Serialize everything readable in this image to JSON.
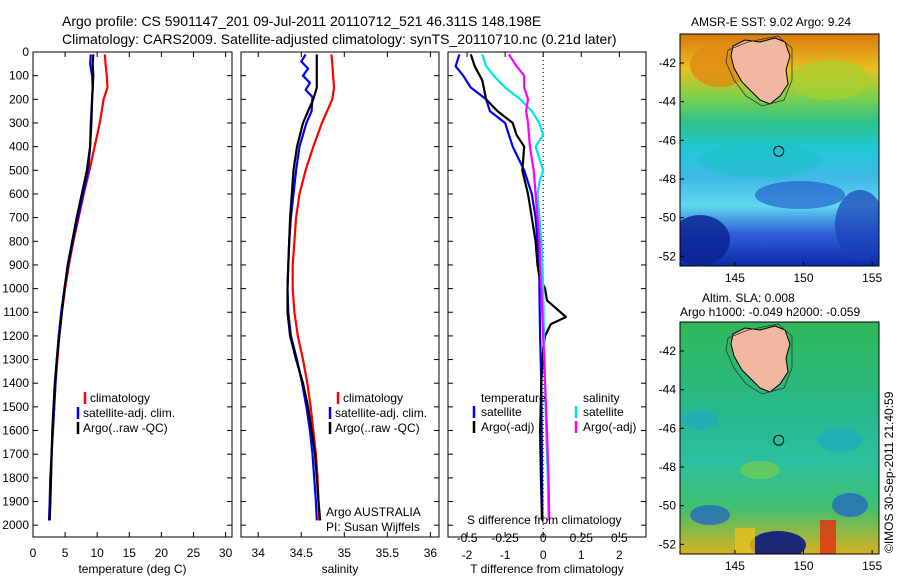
{
  "header": {
    "line1": "Argo profile: CS 5901147_201 09-Jul-2011 20110712_521 46.311S 148.198E",
    "line2": "Climatology: CARS2009. Satellite-adjusted climatology: synTS_20110710.nc (0.21d later)"
  },
  "credit": "©IMOS 30-Sep-2011 21:40:59",
  "colors": {
    "climatology": "#ff0000",
    "satellite": "#0000ff",
    "argo": "#000000",
    "sal_satellite": "#00e5e5",
    "sal_argo": "#ff00ff"
  },
  "chart_data": [
    {
      "type": "line",
      "panel": "temperature",
      "xlabel": "temperature (deg C)",
      "xlim": [
        0,
        31
      ],
      "xticks": [
        "0",
        "5",
        "10",
        "15",
        "20",
        "25",
        "30"
      ],
      "ylim": [
        0,
        2050
      ],
      "yticks": [
        "0",
        "100",
        "200",
        "300",
        "400",
        "500",
        "600",
        "700",
        "800",
        "900",
        "1000",
        "1100",
        "1200",
        "1300",
        "1400",
        "1500",
        "1600",
        "1700",
        "1800",
        "1900",
        "2000"
      ],
      "legend": [
        "climatology",
        "satellite-adj. clim.",
        "Argo(..raw -QC)"
      ],
      "series": [
        {
          "name": "climatology",
          "color": "red",
          "points": [
            [
              11.2,
              10
            ],
            [
              11.3,
              50
            ],
            [
              11.5,
              100
            ],
            [
              11.6,
              150
            ],
            [
              11.0,
              200
            ],
            [
              10.4,
              300
            ],
            [
              9.6,
              400
            ],
            [
              8.8,
              500
            ],
            [
              7.9,
              600
            ],
            [
              7.1,
              700
            ],
            [
              6.3,
              800
            ],
            [
              5.6,
              900
            ],
            [
              5.0,
              1000
            ],
            [
              4.5,
              1100
            ],
            [
              4.1,
              1200
            ],
            [
              3.8,
              1300
            ],
            [
              3.5,
              1400
            ],
            [
              3.3,
              1500
            ],
            [
              3.1,
              1600
            ],
            [
              2.9,
              1700
            ],
            [
              2.8,
              1800
            ],
            [
              2.7,
              1900
            ],
            [
              2.6,
              1980
            ]
          ]
        },
        {
          "name": "satellite-adj. clim.",
          "color": "blue",
          "points": [
            [
              9.0,
              10
            ],
            [
              8.9,
              50
            ],
            [
              9.2,
              100
            ],
            [
              9.3,
              150
            ],
            [
              9.2,
              200
            ],
            [
              9.0,
              300
            ],
            [
              8.9,
              400
            ],
            [
              8.6,
              500
            ],
            [
              7.8,
              600
            ],
            [
              7.0,
              700
            ],
            [
              6.2,
              800
            ],
            [
              5.5,
              900
            ],
            [
              4.9,
              1000
            ],
            [
              4.4,
              1100
            ],
            [
              4.0,
              1200
            ],
            [
              3.7,
              1300
            ],
            [
              3.5,
              1400
            ],
            [
              3.3,
              1500
            ],
            [
              3.1,
              1600
            ],
            [
              2.9,
              1700
            ],
            [
              2.7,
              1800
            ],
            [
              2.6,
              1900
            ],
            [
              2.5,
              1980
            ]
          ]
        },
        {
          "name": "Argo(..raw -QC)",
          "color": "black",
          "points": [
            [
              9.4,
              10
            ],
            [
              9.3,
              50
            ],
            [
              9.4,
              100
            ],
            [
              9.3,
              150
            ],
            [
              9.2,
              200
            ],
            [
              9.1,
              300
            ],
            [
              8.9,
              400
            ],
            [
              8.4,
              500
            ],
            [
              7.6,
              600
            ],
            [
              6.8,
              700
            ],
            [
              6.1,
              800
            ],
            [
              5.4,
              900
            ],
            [
              4.9,
              1000
            ],
            [
              4.5,
              1100
            ],
            [
              4.1,
              1200
            ],
            [
              3.7,
              1300
            ],
            [
              3.4,
              1400
            ],
            [
              3.2,
              1500
            ],
            [
              3.0,
              1600
            ],
            [
              2.9,
              1700
            ],
            [
              2.8,
              1800
            ],
            [
              2.7,
              1900
            ],
            [
              2.6,
              1980
            ]
          ]
        }
      ]
    },
    {
      "type": "line",
      "panel": "salinity",
      "xlabel": "salinity",
      "xlim": [
        33.8,
        36.1
      ],
      "xticks": [
        "34",
        "34.5",
        "35",
        "35.5",
        "36"
      ],
      "ylim": [
        0,
        2050
      ],
      "legend": [
        "climatology",
        "satellite-adj. clim.",
        "Argo(..raw -QC)"
      ],
      "annotation": [
        "Argo AUSTRALIA",
        "PI: Susan Wijffels"
      ],
      "series": [
        {
          "name": "climatology",
          "color": "red",
          "points": [
            [
              34.85,
              10
            ],
            [
              34.86,
              50
            ],
            [
              34.87,
              100
            ],
            [
              34.88,
              150
            ],
            [
              34.86,
              200
            ],
            [
              34.8,
              250
            ],
            [
              34.74,
              300
            ],
            [
              34.64,
              400
            ],
            [
              34.55,
              500
            ],
            [
              34.48,
              600
            ],
            [
              34.44,
              700
            ],
            [
              34.42,
              800
            ],
            [
              34.4,
              900
            ],
            [
              34.4,
              1000
            ],
            [
              34.42,
              1100
            ],
            [
              34.46,
              1200
            ],
            [
              34.52,
              1300
            ],
            [
              34.57,
              1400
            ],
            [
              34.61,
              1500
            ],
            [
              34.64,
              1600
            ],
            [
              34.67,
              1700
            ],
            [
              34.69,
              1800
            ],
            [
              34.7,
              1900
            ],
            [
              34.71,
              1980
            ]
          ]
        },
        {
          "name": "satellite-adj. clim.",
          "color": "blue",
          "points": [
            [
              34.55,
              10
            ],
            [
              34.5,
              40
            ],
            [
              34.58,
              70
            ],
            [
              34.52,
              100
            ],
            [
              34.6,
              130
            ],
            [
              34.55,
              160
            ],
            [
              34.63,
              190
            ],
            [
              34.62,
              250
            ],
            [
              34.56,
              300
            ],
            [
              34.48,
              400
            ],
            [
              34.44,
              500
            ],
            [
              34.41,
              600
            ],
            [
              34.38,
              700
            ],
            [
              34.36,
              800
            ],
            [
              34.35,
              900
            ],
            [
              34.34,
              1000
            ],
            [
              34.35,
              1100
            ],
            [
              34.38,
              1200
            ],
            [
              34.45,
              1300
            ],
            [
              34.51,
              1400
            ],
            [
              34.56,
              1500
            ],
            [
              34.6,
              1600
            ],
            [
              34.63,
              1700
            ],
            [
              34.65,
              1800
            ],
            [
              34.67,
              1900
            ],
            [
              34.68,
              1980
            ]
          ]
        },
        {
          "name": "Argo(..raw -QC)",
          "color": "black",
          "points": [
            [
              34.68,
              10
            ],
            [
              34.68,
              50
            ],
            [
              34.68,
              100
            ],
            [
              34.68,
              150
            ],
            [
              34.64,
              200
            ],
            [
              34.58,
              250
            ],
            [
              34.52,
              300
            ],
            [
              34.45,
              400
            ],
            [
              34.41,
              500
            ],
            [
              34.39,
              600
            ],
            [
              34.37,
              700
            ],
            [
              34.36,
              800
            ],
            [
              34.35,
              900
            ],
            [
              34.34,
              1000
            ],
            [
              34.34,
              1100
            ],
            [
              34.37,
              1200
            ],
            [
              34.44,
              1300
            ],
            [
              34.52,
              1400
            ],
            [
              34.58,
              1500
            ],
            [
              34.62,
              1600
            ],
            [
              34.66,
              1700
            ],
            [
              34.68,
              1800
            ],
            [
              34.7,
              1900
            ],
            [
              34.72,
              1980
            ]
          ]
        }
      ]
    },
    {
      "type": "line",
      "panel": "differences",
      "xlabel": "T difference from climatology",
      "xlabel_top": "S difference from climatology",
      "xlim": [
        -2.5,
        2.7
      ],
      "xticks": [
        "-2",
        "-1",
        "0",
        "1",
        "2"
      ],
      "xticks_salinity": [
        "-0.5",
        "-0.25",
        "0",
        "0.25",
        "0.5"
      ],
      "ylim": [
        0,
        2050
      ],
      "legend_temperature_title": "temperature",
      "legend_salinity_title": "salinity",
      "legend": [
        "satellite",
        "Argo(-adj)",
        "satellite",
        "Argo(-adj)"
      ],
      "series": [
        {
          "name": "satellite",
          "color": "blue",
          "points": [
            [
              -2.2,
              10
            ],
            [
              -2.3,
              60
            ],
            [
              -2.1,
              100
            ],
            [
              -1.9,
              150
            ],
            [
              -1.5,
              200
            ],
            [
              -1.4,
              250
            ],
            [
              -1.0,
              300
            ],
            [
              -0.8,
              400
            ],
            [
              -0.5,
              500
            ],
            [
              -0.3,
              600
            ],
            [
              -0.2,
              700
            ],
            [
              -0.15,
              800
            ],
            [
              -0.1,
              900
            ],
            [
              -0.1,
              1000
            ],
            [
              -0.08,
              1200
            ],
            [
              -0.05,
              1400
            ],
            [
              -0.04,
              1600
            ],
            [
              -0.03,
              1800
            ],
            [
              -0.02,
              1980
            ]
          ]
        },
        {
          "name": "Argo(-adj)",
          "color": "black",
          "points": [
            [
              -1.9,
              10
            ],
            [
              -1.8,
              60
            ],
            [
              -1.6,
              120
            ],
            [
              -1.5,
              200
            ],
            [
              -1.2,
              250
            ],
            [
              -0.8,
              300
            ],
            [
              -0.7,
              350
            ],
            [
              -0.5,
              400
            ],
            [
              -0.55,
              500
            ],
            [
              -0.4,
              600
            ],
            [
              -0.3,
              700
            ],
            [
              -0.2,
              800
            ],
            [
              -0.15,
              900
            ],
            [
              -0.1,
              950
            ],
            [
              0.05,
              1000
            ],
            [
              0.1,
              1050
            ],
            [
              0.6,
              1120
            ],
            [
              0.2,
              1150
            ],
            [
              0.05,
              1200
            ],
            [
              0.0,
              1250
            ],
            [
              -0.05,
              1400
            ],
            [
              -0.08,
              1600
            ],
            [
              -0.06,
              1800
            ],
            [
              -0.03,
              1980
            ]
          ]
        },
        {
          "name": "satellite",
          "color": "cyan",
          "points": [
            [
              -1.6,
              10
            ],
            [
              -1.5,
              60
            ],
            [
              -1.3,
              100
            ],
            [
              -1.0,
              150
            ],
            [
              -0.6,
              200
            ],
            [
              -0.3,
              250
            ],
            [
              -0.1,
              300
            ],
            [
              0.0,
              350
            ],
            [
              -0.2,
              400
            ],
            [
              -0.1,
              450
            ],
            [
              0.0,
              500
            ],
            [
              -0.1,
              550
            ],
            [
              -0.15,
              600
            ],
            [
              -0.1,
              700
            ],
            [
              -0.05,
              800
            ],
            [
              -0.02,
              900
            ],
            [
              0.0,
              1000
            ],
            [
              0.02,
              1200
            ],
            [
              0.05,
              1400
            ],
            [
              0.08,
              1600
            ],
            [
              0.12,
              1800
            ],
            [
              0.14,
              1980
            ]
          ]
        },
        {
          "name": "Argo(-adj)",
          "color": "magenta",
          "points": [
            [
              -0.9,
              10
            ],
            [
              -0.7,
              60
            ],
            [
              -0.5,
              100
            ],
            [
              -0.5,
              150
            ],
            [
              -0.4,
              200
            ],
            [
              -0.45,
              250
            ],
            [
              -0.4,
              300
            ],
            [
              -0.35,
              400
            ],
            [
              -0.25,
              500
            ],
            [
              -0.2,
              600
            ],
            [
              -0.15,
              700
            ],
            [
              -0.1,
              800
            ],
            [
              -0.08,
              900
            ],
            [
              -0.05,
              1000
            ],
            [
              0.0,
              1200
            ],
            [
              0.05,
              1400
            ],
            [
              0.1,
              1600
            ],
            [
              0.14,
              1800
            ],
            [
              0.16,
              1980
            ]
          ]
        }
      ]
    },
    {
      "type": "heatmap",
      "panel": "map-sst",
      "title": "AMSR-E SST: 9.02  Argo: 9.24",
      "xlim": [
        141,
        155.5
      ],
      "ylim": [
        -52.5,
        -40.5
      ],
      "xticks": [
        "145",
        "150",
        "155"
      ],
      "yticks": [
        "-42",
        "-44",
        "-46",
        "-48",
        "-50",
        "-52"
      ],
      "marker": {
        "lon": 148.198,
        "lat": -46.311
      }
    },
    {
      "type": "heatmap",
      "panel": "map-sla",
      "title": "Altim. SLA: 0.008",
      "subtitle": "Argo h1000: -0.049 h2000: -0.059",
      "xlim": [
        141,
        155.5
      ],
      "ylim": [
        -52.5,
        -40.5
      ],
      "xticks": [
        "145",
        "150",
        "155"
      ],
      "yticks": [
        "-42",
        "-44",
        "-46",
        "-48",
        "-50",
        "-52"
      ],
      "marker": {
        "lon": 148.198,
        "lat": -46.311
      }
    }
  ]
}
